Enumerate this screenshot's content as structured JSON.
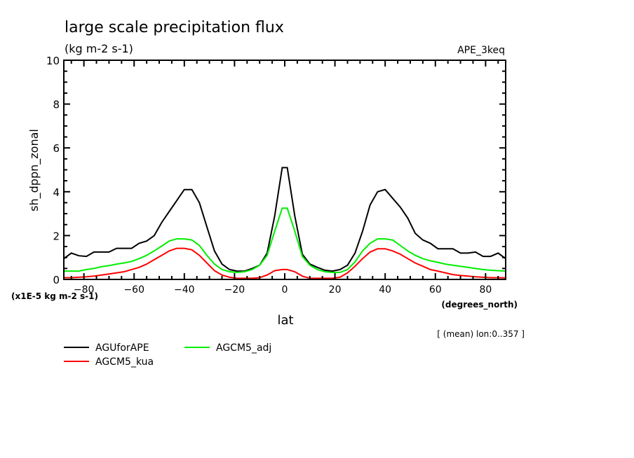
{
  "chart_data": {
    "type": "line",
    "title": "large scale precipitation flux",
    "subtitle": "(kg m-2 s-1)",
    "experiment_label": "APE_3keq",
    "xlabel": "lat",
    "xunits": "(degrees_north)",
    "ylabel": "sh_dppn_zonal",
    "yscale_note": "(x1E-5 kg m-2 s-1)",
    "average_note": "[ (mean) lon:0..357 ]",
    "xlim": [
      -88,
      88
    ],
    "ylim": [
      0,
      10
    ],
    "xticks": [
      -80,
      -60,
      -40,
      -20,
      0,
      20,
      40,
      60,
      80
    ],
    "xtick_labels": [
      "-80",
      "-60",
      "-40",
      "-20",
      "0",
      "20",
      "40",
      "60",
      "80"
    ],
    "yticks": [
      0,
      2,
      4,
      6,
      8,
      10
    ],
    "ytick_labels": [
      "0",
      "2",
      "4",
      "6",
      "8",
      "10"
    ],
    "grid": false,
    "legend_position": "bottom-left",
    "x": [
      -88,
      -85,
      -82,
      -79,
      -76,
      -73,
      -70,
      -67,
      -64,
      -61,
      -58,
      -55,
      -52,
      -49,
      -46,
      -43,
      -40,
      -37,
      -34,
      -31,
      -28,
      -25,
      -22,
      -19,
      -16,
      -13,
      -10,
      -7,
      -4,
      -1,
      1,
      4,
      7,
      10,
      13,
      16,
      19,
      22,
      25,
      28,
      31,
      34,
      37,
      40,
      43,
      46,
      49,
      52,
      55,
      58,
      61,
      64,
      67,
      70,
      73,
      76,
      79,
      82,
      85,
      88
    ],
    "series": [
      {
        "name": "AGUforAPE",
        "color": "#000000",
        "values": [
          0.95,
          1.2,
          1.08,
          1.05,
          1.25,
          1.25,
          1.25,
          1.42,
          1.42,
          1.42,
          1.65,
          1.75,
          2.0,
          2.6,
          3.1,
          3.6,
          4.1,
          4.1,
          3.5,
          2.4,
          1.3,
          0.7,
          0.45,
          0.38,
          0.38,
          0.5,
          0.65,
          1.2,
          2.9,
          5.1,
          5.1,
          2.9,
          1.15,
          0.7,
          0.55,
          0.42,
          0.38,
          0.45,
          0.65,
          1.2,
          2.2,
          3.4,
          4.0,
          4.1,
          3.7,
          3.3,
          2.8,
          2.1,
          1.8,
          1.65,
          1.4,
          1.4,
          1.4,
          1.2,
          1.2,
          1.25,
          1.05,
          1.05,
          1.2,
          0.95
        ]
      },
      {
        "name": "AGCM5_adj",
        "color": "#00ee00",
        "values": [
          0.38,
          0.38,
          0.38,
          0.45,
          0.5,
          0.58,
          0.63,
          0.7,
          0.75,
          0.82,
          0.95,
          1.1,
          1.3,
          1.52,
          1.75,
          1.85,
          1.85,
          1.8,
          1.55,
          1.1,
          0.7,
          0.45,
          0.35,
          0.32,
          0.35,
          0.45,
          0.65,
          1.1,
          2.2,
          3.25,
          3.25,
          2.2,
          1.05,
          0.65,
          0.45,
          0.35,
          0.32,
          0.32,
          0.45,
          0.8,
          1.3,
          1.65,
          1.85,
          1.85,
          1.8,
          1.55,
          1.3,
          1.1,
          0.95,
          0.85,
          0.78,
          0.7,
          0.65,
          0.6,
          0.55,
          0.5,
          0.45,
          0.42,
          0.4,
          0.38
        ]
      },
      {
        "name": "AGCM5_kua",
        "color": "#ff0000",
        "values": [
          0.08,
          0.08,
          0.1,
          0.12,
          0.15,
          0.2,
          0.25,
          0.3,
          0.35,
          0.45,
          0.55,
          0.7,
          0.9,
          1.1,
          1.3,
          1.42,
          1.42,
          1.35,
          1.1,
          0.75,
          0.4,
          0.2,
          0.1,
          0.05,
          0.05,
          0.05,
          0.08,
          0.2,
          0.4,
          0.45,
          0.45,
          0.35,
          0.15,
          0.05,
          0.05,
          0.05,
          0.05,
          0.1,
          0.3,
          0.6,
          0.95,
          1.25,
          1.4,
          1.4,
          1.3,
          1.15,
          0.95,
          0.75,
          0.6,
          0.45,
          0.38,
          0.3,
          0.22,
          0.18,
          0.15,
          0.12,
          0.1,
          0.08,
          0.08,
          0.07
        ]
      }
    ]
  }
}
